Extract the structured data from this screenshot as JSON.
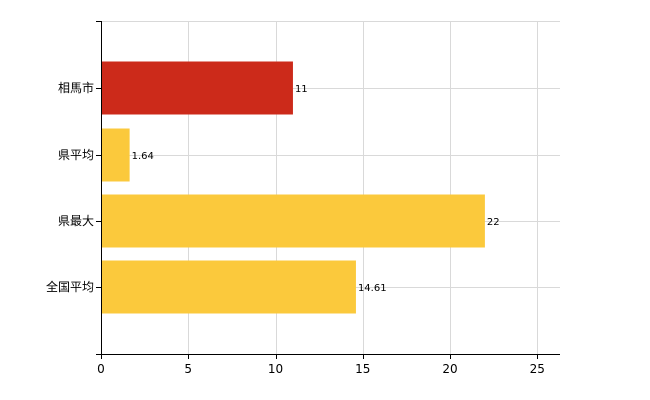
{
  "chart_data": {
    "type": "bar",
    "orientation": "horizontal",
    "categories": [
      "相馬市",
      "県平均",
      "県最大",
      "全国平均"
    ],
    "values": [
      11,
      1.64,
      22,
      14.61
    ],
    "value_labels": [
      "11",
      "1.64",
      "22",
      "14.61"
    ],
    "colors": [
      "#cc2a1a",
      "#fbc93c",
      "#fbc93c",
      "#fbc93c"
    ],
    "xlim": [
      0,
      25
    ],
    "x_ticks": [
      0,
      5,
      10,
      15,
      20,
      25
    ],
    "x_tick_labels": [
      "0",
      "5",
      "10",
      "15",
      "20",
      "25"
    ],
    "grid": true,
    "title": "",
    "xlabel": "",
    "ylabel": ""
  }
}
